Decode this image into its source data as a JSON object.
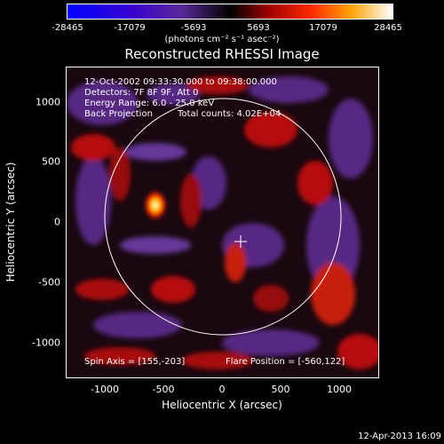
{
  "colorbar": {
    "ticks": [
      "-28465",
      "-17079",
      "-5693",
      "5693",
      "17079",
      "28465"
    ],
    "units": "(photons cm⁻² s⁻¹ asec⁻²)"
  },
  "title": "Reconstructed RHESSI Image",
  "info": {
    "time": "12-Oct-2002 09:33:30.000 to 09:38:00.000",
    "detectors": "Detectors: 7F 8F 9F, Att 0",
    "energy": "Energy Range: 6.0 - 25.0 keV",
    "method": "Back Projection",
    "counts": "Total counts: 4.02E+04"
  },
  "footer": {
    "spin_axis": "Spin Axis = [155,-203]",
    "flare_position": "Flare Position = [-560,122]"
  },
  "axes": {
    "xlabel": "Heliocentric X (arcsec)",
    "ylabel": "Heliocentric Y (arcsec)",
    "xticks": [
      "-1000",
      "-500",
      "0",
      "500",
      "1000"
    ],
    "yticks": [
      "1000",
      "500",
      "0",
      "-500",
      "-1000"
    ]
  },
  "timestamp": "12-Apr-2013 16:09",
  "colors": {
    "background": "#000000",
    "frame": "#ffffff"
  }
}
